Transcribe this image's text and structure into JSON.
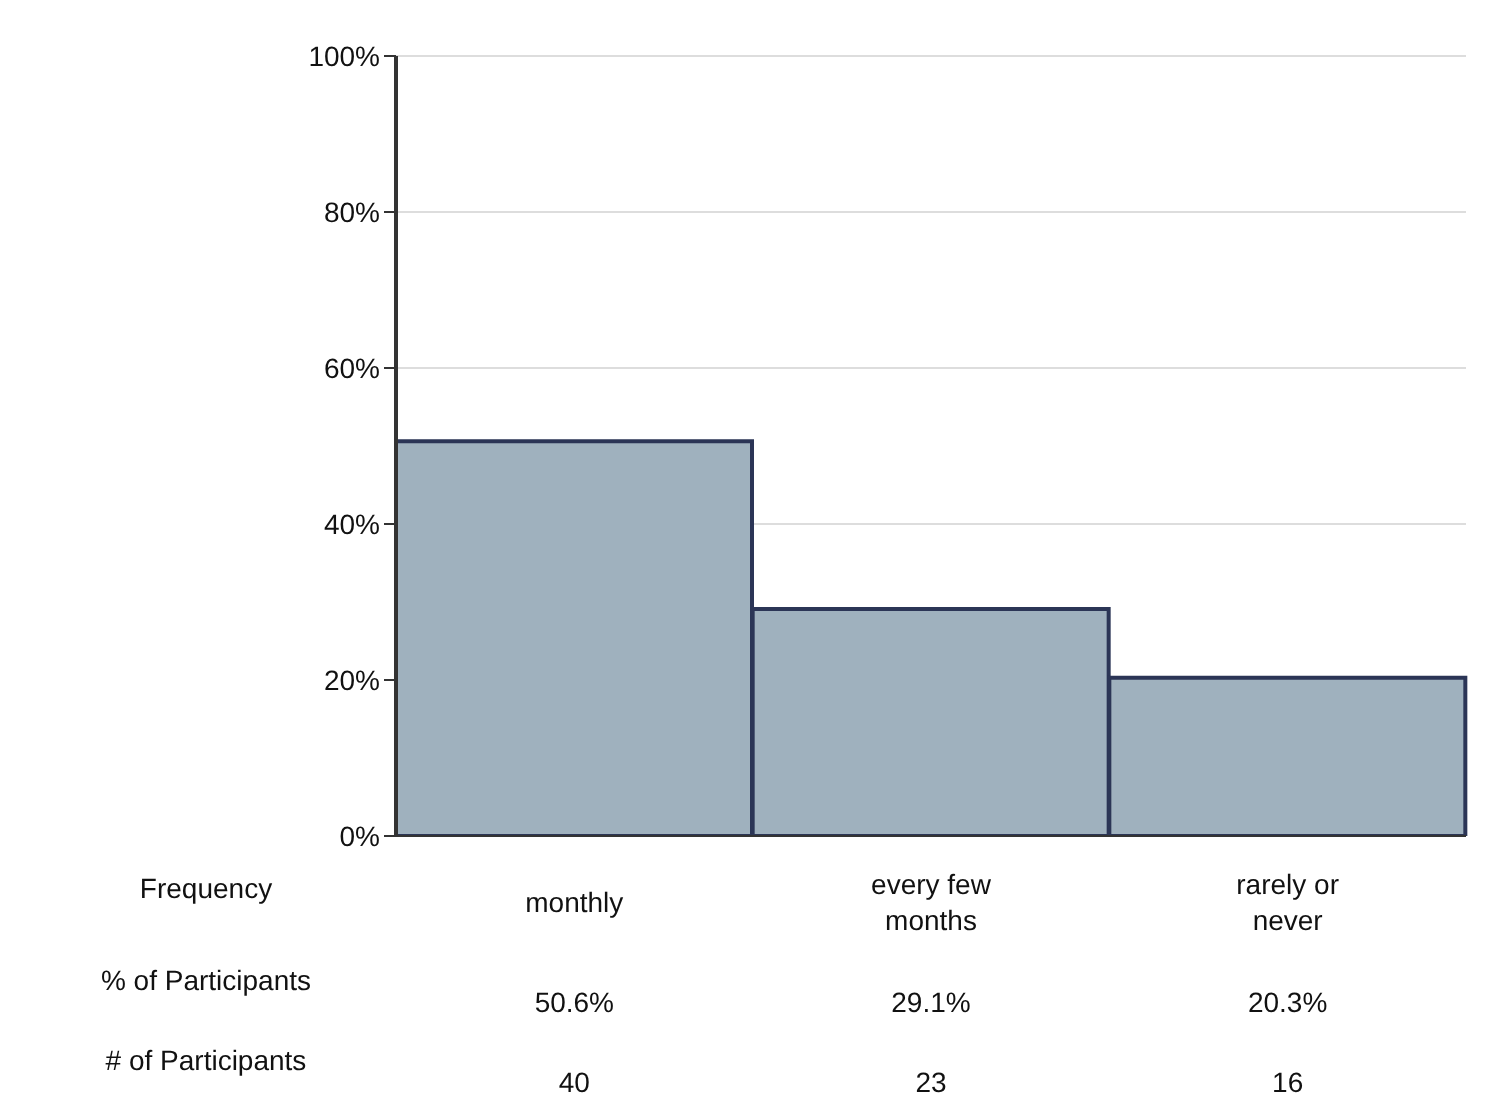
{
  "chart_data": {
    "type": "bar",
    "xlabel": "Frequency",
    "categories": [
      "monthly",
      "every few months",
      "rarely or never"
    ],
    "values": [
      50.6,
      29.1,
      20.3
    ],
    "value_labels": [
      "50.6%",
      "29.1%",
      "20.3%"
    ],
    "color": "#9fb1be",
    "ylim": [
      0,
      100
    ],
    "yticks": [
      {
        "value": 0,
        "label": "0%"
      },
      {
        "value": 20,
        "label": "20%"
      },
      {
        "value": 40,
        "label": "40%"
      },
      {
        "value": 60,
        "label": "60%"
      },
      {
        "value": 80,
        "label": "80%"
      },
      {
        "value": 100,
        "label": "100%"
      }
    ],
    "grid": "y",
    "annotations": [
      "% of Participants",
      "# of Participants",
      "40",
      "23",
      "16"
    ]
  }
}
